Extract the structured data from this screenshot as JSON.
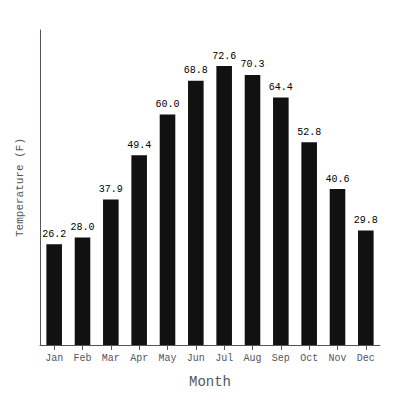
{
  "chart_data": {
    "type": "bar",
    "categories": [
      "Jan",
      "Feb",
      "Mar",
      "Apr",
      "May",
      "Jun",
      "Jul",
      "Aug",
      "Sep",
      "Oct",
      "Nov",
      "Dec"
    ],
    "values": [
      26.2,
      28.0,
      37.9,
      49.4,
      60.0,
      68.8,
      72.6,
      70.3,
      64.4,
      52.8,
      40.6,
      29.8
    ],
    "value_labels": [
      "26.2",
      "28.0",
      "37.9",
      "49.4",
      "60.0",
      "68.8",
      "72.6",
      "70.3",
      "64.4",
      "52.8",
      "40.6",
      "29.8"
    ],
    "color": "#111111",
    "xlabel": "Month",
    "ylabel": "Temperature (F)",
    "ylim": [
      0,
      82
    ],
    "yticks": [],
    "tick_labels": "x",
    "data_labels": true,
    "grid": false
  }
}
